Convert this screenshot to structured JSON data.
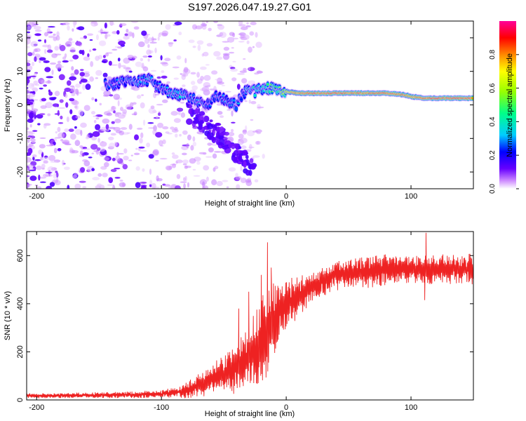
{
  "title": "S197.2026.047.19.27.G01",
  "chart_data": [
    {
      "type": "heatmap",
      "title": "",
      "xlabel": "Height of straight line (km)",
      "ylabel": "Frequency (Hz)",
      "xlim": [
        -208,
        150
      ],
      "ylim": [
        -25,
        25
      ],
      "xticks": [
        -200,
        -100,
        0,
        100
      ],
      "yticks": [
        -20,
        -10,
        0,
        10,
        20
      ],
      "colorbar": {
        "label": "Normalized spectral amplitude",
        "range": [
          0,
          1
        ],
        "ticks": [
          0.0,
          0.2,
          0.4,
          0.6,
          0.8
        ],
        "tick_labels": [
          "0.0",
          "0.2",
          "0.4",
          "0.6",
          "0.8"
        ],
        "colors": [
          "#ffffff",
          "#cc88ff",
          "#6600ff",
          "#0000ff",
          "#00ccff",
          "#00ff88",
          "#99ff00",
          "#ffff00",
          "#ff8800",
          "#ff0000",
          "#ff0099"
        ]
      },
      "ridge": {
        "x": [
          -140,
          -130,
          -120,
          -110,
          -100,
          -92,
          -85,
          -78,
          -70,
          -62,
          -55,
          -48,
          -40,
          -35,
          -30,
          -25,
          -20,
          -15,
          -10,
          -5,
          0,
          10,
          20,
          40,
          60,
          80,
          95,
          100,
          110,
          120,
          130,
          150
        ],
        "freq": [
          6,
          7,
          7,
          7.5,
          5,
          3.5,
          3,
          2.5,
          1,
          0,
          3,
          1,
          0,
          3,
          5,
          4,
          5,
          5,
          5,
          4,
          4,
          3.5,
          3.5,
          3.5,
          3.5,
          3.5,
          3,
          2.5,
          2,
          2,
          2,
          2
        ],
        "amplitude": [
          0.3,
          0.3,
          0.35,
          0.35,
          0.3,
          0.35,
          0.4,
          0.3,
          0.35,
          0.3,
          0.3,
          0.3,
          0.35,
          0.3,
          0.4,
          0.45,
          0.45,
          0.5,
          0.55,
          0.6,
          0.7,
          0.85,
          0.88,
          0.9,
          0.85,
          0.88,
          0.85,
          0.8,
          0.88,
          0.9,
          0.9,
          0.9
        ]
      }
    },
    {
      "type": "line",
      "title": "",
      "xlabel": "Height of straight line (km)",
      "ylabel": "SNR (10 * v/v)",
      "xlim": [
        -208,
        150
      ],
      "ylim": [
        0,
        700
      ],
      "xticks": [
        -200,
        -100,
        0,
        100
      ],
      "yticks": [
        0,
        200,
        400,
        600
      ],
      "series": [
        {
          "name": "SNR",
          "color": "#ee2222",
          "envelope_x": [
            -208,
            -180,
            -150,
            -120,
            -100,
            -90,
            -80,
            -70,
            -60,
            -50,
            -40,
            -30,
            -25,
            -20,
            -15,
            -10,
            -5,
            0,
            5,
            10,
            15,
            20,
            30,
            40,
            60,
            80,
            100,
            120,
            140,
            150
          ],
          "envelope_mean": [
            18,
            18,
            20,
            22,
            25,
            30,
            40,
            60,
            85,
            110,
            140,
            175,
            200,
            230,
            280,
            330,
            370,
            400,
            415,
            430,
            450,
            470,
            500,
            520,
            530,
            540,
            545,
            545,
            545,
            545
          ],
          "envelope_spread": [
            10,
            10,
            12,
            14,
            15,
            20,
            30,
            45,
            60,
            80,
            100,
            120,
            150,
            200,
            180,
            150,
            120,
            100,
            90,
            80,
            70,
            60,
            60,
            60,
            60,
            60,
            60,
            60,
            60,
            60
          ],
          "spikes": [
            {
              "x": -38,
              "y": 380
            },
            {
              "x": -30,
              "y": 450
            },
            {
              "x": -20,
              "y": 520
            },
            {
              "x": -15,
              "y": 655
            },
            {
              "x": -12,
              "y": 550
            },
            {
              "x": 112,
              "y": 695
            },
            {
              "x": 111,
              "y": 415
            }
          ]
        }
      ]
    }
  ]
}
